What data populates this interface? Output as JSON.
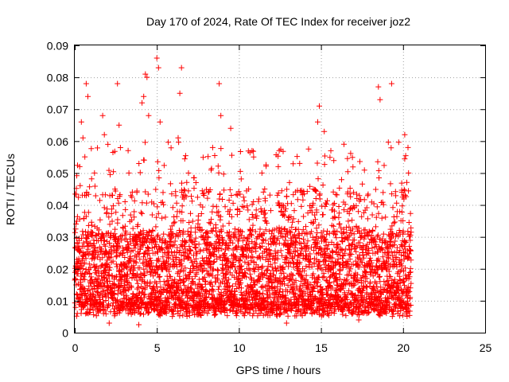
{
  "chart_data": {
    "type": "scatter",
    "title": "Day 170 of 2024, Rate Of TEC Index for receiver joz2",
    "xlabel": "GPS time / hours",
    "ylabel": "ROTI / TECUs",
    "xlim": [
      0,
      25
    ],
    "ylim": [
      0,
      0.09
    ],
    "xticks": [
      0,
      5,
      10,
      15,
      20,
      25
    ],
    "yticks": [
      0,
      0.01,
      0.02,
      0.03,
      0.04,
      0.05,
      0.06,
      0.07,
      0.08,
      0.09
    ],
    "xtick_labels": [
      "0",
      "5",
      "10",
      "15",
      "20",
      "25"
    ],
    "ytick_labels": [
      "0",
      "0.01",
      "0.02",
      "0.03",
      "0.04",
      "0.05",
      "0.06",
      "0.07",
      "0.08",
      "0.09"
    ],
    "grid": true,
    "marker": "+",
    "series": [
      {
        "name": "ROTI",
        "color": "#ff0000",
        "x_range": [
          0,
          20.5
        ],
        "typical_range": [
          0.005,
          0.03
        ],
        "points": [
          [
            0.3,
            0.052
          ],
          [
            0.4,
            0.066
          ],
          [
            0.5,
            0.061
          ],
          [
            0.7,
            0.078
          ],
          [
            0.8,
            0.074
          ],
          [
            1.2,
            0.05
          ],
          [
            1.7,
            0.068
          ],
          [
            1.8,
            0.062
          ],
          [
            2.6,
            0.078
          ],
          [
            2.7,
            0.065
          ],
          [
            3.3,
            0.05
          ],
          [
            4.1,
            0.072
          ],
          [
            4.2,
            0.074
          ],
          [
            4.3,
            0.081
          ],
          [
            4.4,
            0.08
          ],
          [
            4.5,
            0.068
          ],
          [
            5.0,
            0.086
          ],
          [
            5.1,
            0.083
          ],
          [
            5.2,
            0.066
          ],
          [
            6.5,
            0.083
          ],
          [
            6.4,
            0.075
          ],
          [
            6.3,
            0.061
          ],
          [
            8.8,
            0.078
          ],
          [
            8.9,
            0.068
          ],
          [
            8.4,
            0.058
          ],
          [
            9.5,
            0.064
          ],
          [
            10.8,
            0.057
          ],
          [
            14.9,
            0.071
          ],
          [
            14.8,
            0.066
          ],
          [
            15.2,
            0.063
          ],
          [
            15.6,
            0.057
          ],
          [
            18.5,
            0.077
          ],
          [
            18.6,
            0.073
          ],
          [
            19.3,
            0.078
          ],
          [
            20.1,
            0.062
          ],
          [
            20.3,
            0.058
          ],
          [
            16.4,
            0.059
          ],
          [
            12.4,
            0.052
          ],
          [
            11.4,
            0.05
          ],
          [
            13.7,
            0.053
          ],
          [
            2.1,
            0.003
          ],
          [
            3.9,
            0.0025
          ],
          [
            12.9,
            0.003
          ],
          [
            17.3,
            0.004
          ]
        ]
      }
    ]
  }
}
